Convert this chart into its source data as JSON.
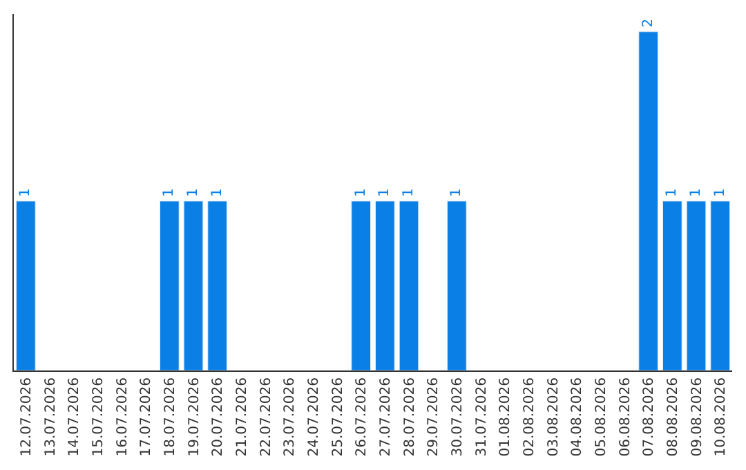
{
  "chart_data": {
    "type": "bar",
    "categories": [
      "12.07.2026",
      "13.07.2026",
      "14.07.2026",
      "15.07.2026",
      "16.07.2026",
      "17.07.2026",
      "18.07.2026",
      "19.07.2026",
      "20.07.2026",
      "21.07.2026",
      "22.07.2026",
      "23.07.2026",
      "24.07.2026",
      "25.07.2026",
      "26.07.2026",
      "27.07.2026",
      "28.07.2026",
      "29.07.2026",
      "30.07.2026",
      "31.07.2026",
      "01.08.2026",
      "02.08.2026",
      "03.08.2026",
      "04.08.2026",
      "05.08.2026",
      "06.08.2026",
      "07.08.2026",
      "08.08.2026",
      "09.08.2026",
      "10.08.2026"
    ],
    "values": [
      1,
      null,
      null,
      null,
      null,
      null,
      1,
      1,
      1,
      null,
      null,
      null,
      null,
      null,
      1,
      1,
      1,
      null,
      1,
      null,
      null,
      null,
      null,
      null,
      null,
      null,
      2,
      1,
      1,
      1
    ],
    "value_labels": [
      "1",
      null,
      null,
      null,
      null,
      null,
      "1",
      "1",
      "1",
      null,
      null,
      null,
      null,
      null,
      "1",
      "1",
      "1",
      null,
      "1",
      null,
      null,
      null,
      null,
      null,
      null,
      null,
      "2",
      "1",
      "1",
      "1"
    ],
    "color": "#0a7fe6",
    "tick_labels": "x",
    "legend": false
  }
}
